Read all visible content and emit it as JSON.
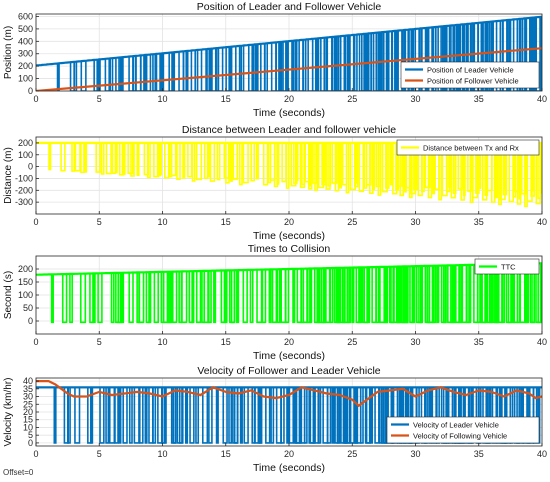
{
  "footer": {
    "offset_text": "Offset=0"
  },
  "chart_data": [
    {
      "type": "line",
      "title": "Position of Leader and Follower Vehicle",
      "xlabel": "Time (seconds)",
      "ylabel": "Position (m)",
      "xlim": [
        0,
        40
      ],
      "ylim": [
        0,
        620
      ],
      "xticks": [
        0,
        5,
        10,
        15,
        20,
        25,
        30,
        35,
        40
      ],
      "yticks": [
        0,
        100,
        200,
        300,
        400,
        500,
        600
      ],
      "grid": true,
      "legend_position": "lower-right",
      "series": [
        {
          "name": "Position of Leader Vehicle",
          "color": "#0072BD",
          "style": "dropout-spikes",
          "baseline": 0,
          "x": [
            0,
            40
          ],
          "y": [
            205,
            598
          ]
        },
        {
          "name": "Position of Follower Vehicle",
          "color": "#D95319",
          "style": "line",
          "x": [
            0,
            40
          ],
          "y": [
            0,
            345
          ]
        }
      ]
    },
    {
      "type": "line",
      "title": "Distance between Leader and follower vehicle",
      "xlabel": "Time (seconds)",
      "ylabel": "Distance (m)",
      "xlim": [
        0,
        40
      ],
      "ylim": [
        -400,
        250
      ],
      "xticks": [
        0,
        5,
        10,
        15,
        20,
        25,
        30,
        35,
        40
      ],
      "yticks": [
        -300,
        -200,
        -100,
        0,
        100,
        200
      ],
      "grid": true,
      "legend_position": "top-right",
      "series": [
        {
          "name": "Distance between Tx and Rx",
          "color": "#FFFF00",
          "style": "dropout-spikes",
          "baseline": "negative-of-leader-position",
          "x": [
            0,
            40
          ],
          "y": [
            200,
            200
          ]
        }
      ]
    },
    {
      "type": "line",
      "title": "Times to Collision",
      "xlabel": "Time (seconds)",
      "ylabel": "Second (s)",
      "xlim": [
        0,
        40
      ],
      "ylim": [
        -50,
        250
      ],
      "xticks": [
        0,
        5,
        10,
        15,
        20,
        25,
        30,
        35,
        40
      ],
      "yticks": [
        0,
        50,
        100,
        150,
        200
      ],
      "grid": true,
      "legend_position": "top-right",
      "series": [
        {
          "name": "TTC",
          "color": "#00FF00",
          "style": "dropout-spikes",
          "baseline": -5,
          "x": [
            0,
            40
          ],
          "y": [
            178,
            222
          ]
        }
      ]
    },
    {
      "type": "line",
      "title": "Velocity of Follower and Leader Vehicle",
      "xlabel": "Time (seconds)",
      "ylabel": "Velocity (km/hr)",
      "xlim": [
        0,
        40
      ],
      "ylim": [
        -2,
        42
      ],
      "xticks": [
        0,
        5,
        10,
        15,
        20,
        25,
        30,
        35,
        40
      ],
      "yticks": [
        0,
        5,
        10,
        15,
        20,
        25,
        30,
        35,
        40
      ],
      "grid": true,
      "legend_position": "lower-right",
      "series": [
        {
          "name": "Velocity of Leader Vehicle",
          "color": "#0072BD",
          "style": "dropout-spikes",
          "baseline": 0,
          "x": [
            0,
            40
          ],
          "y": [
            36,
            36
          ]
        },
        {
          "name": "Velocity of Following Vehicle",
          "color": "#D95319",
          "style": "line",
          "x": [
            0,
            0.5,
            1,
            1.5,
            2,
            2.5,
            3,
            4,
            5,
            6,
            7,
            8,
            9,
            10,
            11,
            12,
            13,
            14,
            15,
            16,
            17,
            18,
            19,
            20,
            21,
            22,
            23,
            24,
            25,
            25.5,
            26,
            27,
            28,
            29,
            30,
            31,
            32,
            33,
            34,
            35,
            36,
            37,
            38,
            39,
            39.5,
            40
          ],
          "y": [
            40,
            40,
            40,
            38,
            35,
            32,
            30,
            30,
            33,
            31,
            32,
            33,
            32,
            30,
            34,
            33,
            31,
            36,
            33,
            32,
            34,
            30,
            29,
            31,
            36,
            34,
            32,
            31,
            28,
            24,
            27,
            33,
            34,
            35,
            30,
            34,
            36,
            33,
            31,
            34,
            33,
            30,
            34,
            32,
            29,
            30
          ]
        }
      ]
    }
  ]
}
